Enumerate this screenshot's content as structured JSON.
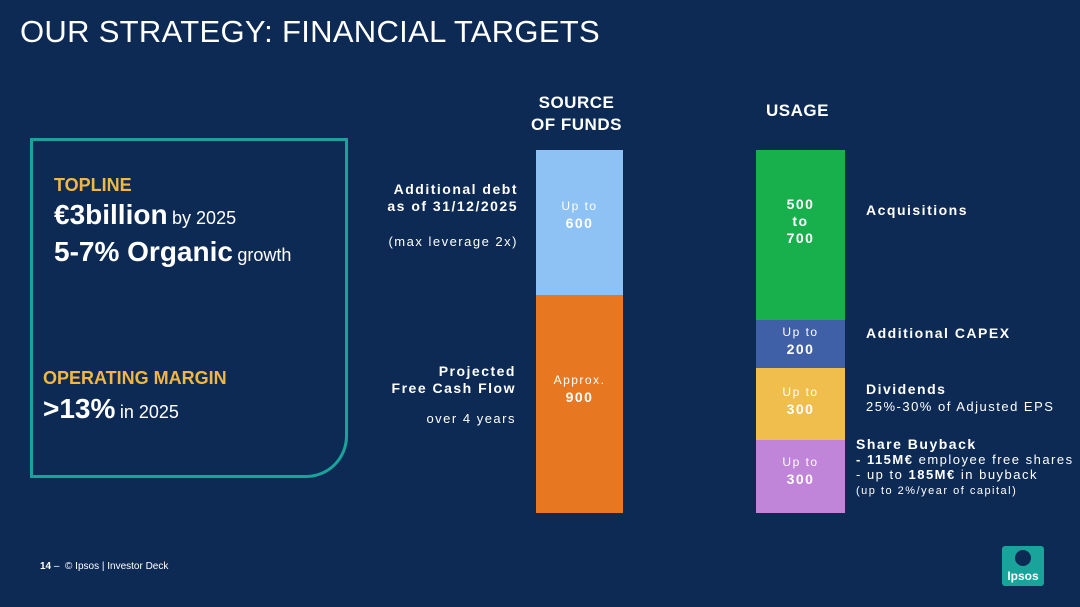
{
  "title": "OUR STRATEGY: FINANCIAL TARGETS",
  "left": {
    "topline_label": "TOPLINE",
    "topline_value": "€3billion",
    "topline_suffix": "by 2025",
    "organic_value": "5-7% Organic",
    "organic_suffix": "growth",
    "margin_label": "OPERATING MARGIN",
    "margin_value": ">13%",
    "margin_suffix": "in 2025"
  },
  "source": {
    "heading_line1": "SOURCE",
    "heading_line2": "OF FUNDS",
    "debt": {
      "bar_prefix": "Up to",
      "bar_value": "600",
      "label_line1": "Additional debt",
      "label_line2": "as of 31/12/2025",
      "note": "(max leverage 2x)",
      "color": "#8ec2f5"
    },
    "fcf": {
      "bar_prefix": "Approx.",
      "bar_value": "900",
      "label_line1": "Projected",
      "label_line2": "Free Cash Flow",
      "note": "over 4 years",
      "color": "#e87722"
    }
  },
  "usage": {
    "heading": "USAGE",
    "acquisitions": {
      "line1": "500",
      "line2": "to",
      "line3": "700",
      "label": "Acquisitions",
      "color": "#18b04c"
    },
    "capex": {
      "prefix": "Up to",
      "value": "200",
      "label": "Additional CAPEX",
      "color": "#3f5fa6"
    },
    "dividends": {
      "prefix": "Up to",
      "value": "300",
      "label": "Dividends",
      "sublabel": "25%-30% of Adjusted EPS",
      "color": "#f0be4c"
    },
    "buyback": {
      "prefix": "Up to",
      "value": "300",
      "label": "Share Buyback",
      "line1_bold": "- 115M€",
      "line1_rest": "employee free shares",
      "line2_pre": "- up to",
      "line2_bold": "185M€",
      "line2_rest": "in buyback",
      "line3": "(up to 2%/year of capital)",
      "color": "#c084d8"
    }
  },
  "footer": {
    "page": "14",
    "dash": "–",
    "text": "© Ipsos | Investor Deck"
  },
  "logo": {
    "text": "Ipsos",
    "color": "#1aa39a"
  }
}
